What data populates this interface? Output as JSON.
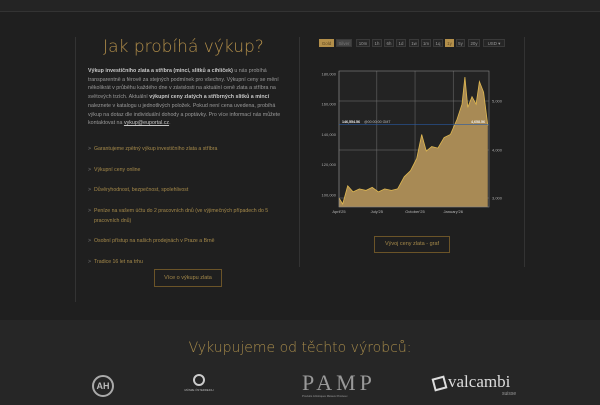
{
  "title": "Jak probíhá výkup?",
  "intro": {
    "b1": "Výkup investičního zlata a stříbra (mincí, slitků a cihliček)",
    "t1": " u nás probíhá transparentně a férově za stejných podmínek pro všechny. Výkupní ceny se mění několikrát v průběhu každého dne v závislosti na aktuální ceně zlata a stříbra na světových trzích. Aktuální ",
    "b2": "výkupní ceny zlatých a stříbrných slitků a mincí",
    "t2": " naleznete v katalogu u jednotlivých položek. Pokud není cena uvedena, probíhá výkup na dotaz dle individuální dohody a poptávky. Pro více informací nás můžete kontaktovat na ",
    "email": "vykup@euportal.cz",
    "t3": "."
  },
  "features": [
    "Garantujeme zpětný výkup investičního zlata a stříbra",
    "Výkupní ceny online",
    "Důvěryhodnost, bezpečnost, spolehlivost",
    "Peníze na vašem účtu do 2 pracovních dnů (ve výjimečných případech do 5 pracovních dnů)",
    "Osobní přístup na našich prodejnách v Praze a Brně",
    "Tradice 16 let na trhu"
  ],
  "more_button": "Více o výkupu zlata",
  "chart_button": "Vývoj ceny zlata - graf",
  "chart_controls": {
    "metals": [
      "Gold",
      "Silver"
    ],
    "active_metal": "Gold",
    "ranges": [
      "10m",
      "1h",
      "6h",
      "1d",
      "1w",
      "1m",
      "1q",
      "1y",
      "5y",
      "20y"
    ],
    "active_range": "1y",
    "currency": "USD"
  },
  "colors": {
    "accent": "#b38f4a",
    "fill": "#a88a55",
    "line": "#e0b850"
  },
  "chart_data": {
    "type": "area",
    "x": [
      "2025-04-01",
      "2025-04-10",
      "2025-04-22",
      "2025-05-05",
      "2025-05-20",
      "2025-06-05",
      "2025-06-20",
      "2025-07-05",
      "2025-07-20",
      "2025-08-05",
      "2025-08-20",
      "2025-09-05",
      "2025-09-20",
      "2025-10-05",
      "2025-10-17",
      "2025-10-28",
      "2025-11-10",
      "2025-11-25",
      "2025-12-10",
      "2025-12-25",
      "2026-01-10",
      "2026-01-22",
      "2026-01-29",
      "2026-02-05",
      "2026-02-15",
      "2026-02-25",
      "2026-03-05",
      "2026-03-15",
      "2026-03-25"
    ],
    "values": [
      98000,
      94000,
      106000,
      102000,
      104000,
      103000,
      105000,
      102000,
      104000,
      103000,
      104000,
      112000,
      116000,
      124000,
      140000,
      129000,
      132000,
      131000,
      138000,
      140000,
      150000,
      160000,
      178000,
      158000,
      165000,
      160000,
      175000,
      168000,
      146000
    ],
    "ylabel_left_ticks": [
      "100,000",
      "120,000",
      "140,000",
      "160,000",
      "180,000"
    ],
    "ylim": [
      92000,
      182000
    ],
    "right_ticks": [
      "3,000",
      "4,000",
      "5,000"
    ],
    "x_ticks": [
      "April'25",
      "July'25",
      "October'25",
      "January'26"
    ],
    "crosshair": {
      "value": "146,554.56",
      "time": "@00:00:00 GMT",
      "right_value": "4,658.56"
    },
    "grid": true
  },
  "footer": {
    "title": "Vykupujeme od těchto výrobců:",
    "logos": [
      "Argor-Heraeus",
      "Münze Österreich",
      "PAMP",
      "valcambi"
    ],
    "pamp_sub": "Produits Artistiques Métaux Précieux",
    "valcambi_sub": "suisse",
    "munze": "MÜNZE ÖSTERREICH"
  }
}
